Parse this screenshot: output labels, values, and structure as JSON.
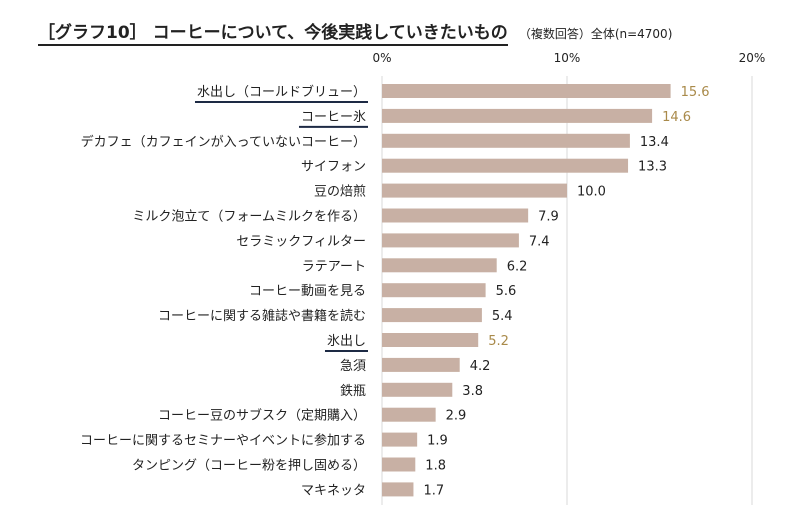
{
  "title": {
    "main": "［グラフ10］ コーヒーについて、今後実践していきたいもの",
    "sub": "（複数回答）全体(n=4700)"
  },
  "colors": {
    "bar": "#c8b0a4",
    "highlight_value": "#a98a4a",
    "normal_value": "#222222",
    "grid": "#d9d9d9",
    "underline": "#1d2a44"
  },
  "chart_data": {
    "type": "bar",
    "orientation": "horizontal",
    "title": "［グラフ10］ コーヒーについて、今後実践していきたいもの",
    "subtitle": "（複数回答）全体(n=4700)",
    "xlim": [
      0,
      20
    ],
    "ticks": [
      0,
      10,
      20
    ],
    "tick_labels": [
      "0%",
      "10%",
      "20%"
    ],
    "categories": [
      "水出し（コールドブリュー）",
      "コーヒー氷",
      "デカフェ（カフェインが入っていないコーヒー）",
      "サイフォン",
      "豆の焙煎",
      "ミルク泡立て（フォームミルクを作る）",
      "セラミックフィルター",
      "ラテアート",
      "コーヒー動画を見る",
      "コーヒーに関する雑誌や書籍を読む",
      "氷出し",
      "急須",
      "鉄瓶",
      "コーヒー豆のサブスク（定期購入）",
      "コーヒーに関するセミナーやイベントに参加する",
      "タンピング（コーヒー粉を押し固める）",
      "マキネッタ"
    ],
    "values": [
      15.6,
      14.6,
      13.4,
      13.3,
      10.0,
      7.9,
      7.4,
      6.2,
      5.6,
      5.4,
      5.2,
      4.2,
      3.8,
      2.9,
      1.9,
      1.8,
      1.7
    ],
    "value_labels": [
      "15.6",
      "14.6",
      "13.4",
      "13.3",
      "10.0",
      "7.9",
      "7.4",
      "6.2",
      "5.6",
      "5.4",
      "5.2",
      "4.2",
      "3.8",
      "2.9",
      "1.9",
      "1.8",
      "1.7"
    ],
    "highlighted": [
      true,
      true,
      false,
      false,
      false,
      false,
      false,
      false,
      false,
      false,
      true,
      false,
      false,
      false,
      false,
      false,
      false
    ]
  }
}
